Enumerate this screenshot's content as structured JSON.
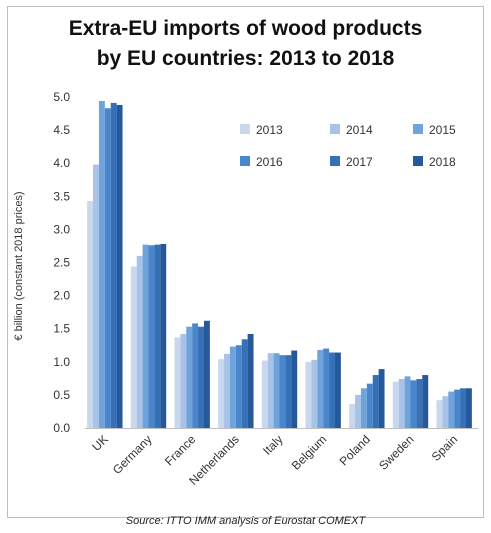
{
  "chart_data": {
    "type": "bar",
    "title_lines": [
      "Extra-EU imports of wood products",
      "by EU countries: 2013 to 2018"
    ],
    "xlabel": "",
    "ylabel": "€ billion (constant 2018 prices)",
    "ylim": [
      0,
      5.0
    ],
    "y_ticks": [
      "0.0",
      "0.5",
      "1.0",
      "1.5",
      "2.0",
      "2.5",
      "3.0",
      "3.5",
      "4.0",
      "4.5",
      "5.0"
    ],
    "grid": false,
    "legend_position": "top-right",
    "categories": [
      "UK",
      "Germany",
      "France",
      "Netherlands",
      "Italy",
      "Belgium",
      "Poland",
      "Sweden",
      "Spain"
    ],
    "series": [
      {
        "name": "2013",
        "color": "#c9d8ee",
        "values": [
          3.43,
          2.44,
          1.37,
          1.04,
          1.02,
          1.0,
          0.36,
          0.7,
          0.42
        ]
      },
      {
        "name": "2014",
        "color": "#a9c3e8",
        "values": [
          3.98,
          2.6,
          1.42,
          1.12,
          1.13,
          1.03,
          0.5,
          0.74,
          0.48
        ]
      },
      {
        "name": "2015",
        "color": "#6fa3dc",
        "values": [
          4.94,
          2.77,
          1.53,
          1.23,
          1.13,
          1.18,
          0.6,
          0.78,
          0.55
        ]
      },
      {
        "name": "2016",
        "color": "#4a86cc",
        "values": [
          4.83,
          2.76,
          1.58,
          1.25,
          1.1,
          1.2,
          0.67,
          0.72,
          0.58
        ]
      },
      {
        "name": "2017",
        "color": "#3670b6",
        "values": [
          4.91,
          2.77,
          1.53,
          1.34,
          1.1,
          1.14,
          0.8,
          0.74,
          0.6
        ]
      },
      {
        "name": "2018",
        "color": "#25599b",
        "values": [
          4.88,
          2.78,
          1.62,
          1.42,
          1.17,
          1.14,
          0.89,
          0.8,
          0.6
        ]
      }
    ]
  },
  "source": "Source: ITTO IMM analysis of Eurostat COMEXT"
}
